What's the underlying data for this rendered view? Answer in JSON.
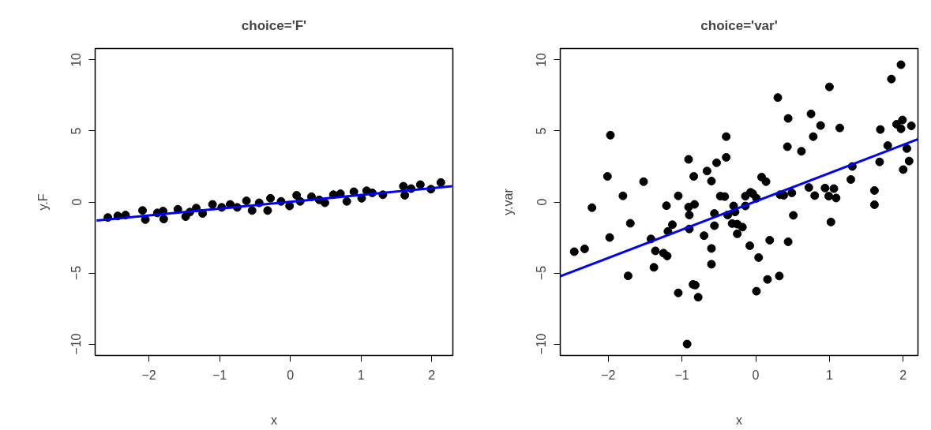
{
  "chart_data": [
    {
      "type": "scatter",
      "title": "choice='F'",
      "xlabel": "x",
      "ylabel": "y.F",
      "xlim": [
        -2.76,
        2.3
      ],
      "ylim": [
        -10.8,
        10.8
      ],
      "xticks": [
        -2,
        -1,
        0,
        1,
        2
      ],
      "yticks": [
        -10,
        -5,
        0,
        5,
        10
      ],
      "grid": false,
      "series": [
        {
          "marker": "circle",
          "color": "#000000",
          "x": [
            -2.58,
            -2.44,
            -2.33,
            -2.09,
            -2.05,
            -1.88,
            -1.8,
            -1.79,
            -1.59,
            -1.48,
            -1.42,
            -1.33,
            -1.24,
            -1.1,
            -0.97,
            -0.85,
            -0.75,
            -0.62,
            -0.54,
            -0.44,
            -0.28,
            -0.32,
            -0.13,
            -0.01,
            0.09,
            0.14,
            0.3,
            0.41,
            0.49,
            0.61,
            0.71,
            0.8,
            0.9,
            1.01,
            1.08,
            1.16,
            1.31,
            1.6,
            1.62,
            1.71,
            1.84,
            1.99,
            2.13
          ],
          "values": [
            -1.09,
            -0.98,
            -0.92,
            -0.6,
            -1.24,
            -0.77,
            -0.64,
            -1.2,
            -0.51,
            -1.03,
            -0.71,
            -0.43,
            -0.81,
            -0.17,
            -0.38,
            -0.17,
            -0.38,
            0.08,
            -0.6,
            -0.06,
            0.26,
            -0.6,
            0.04,
            -0.28,
            0.47,
            0.04,
            0.37,
            0.15,
            -0.06,
            0.51,
            0.58,
            0.04,
            0.72,
            0.26,
            0.79,
            0.64,
            0.51,
            1.11,
            0.47,
            0.94,
            1.22,
            0.9,
            1.37
          ]
        },
        {
          "type": "line",
          "color": "#0000ff",
          "x": [
            -2.74,
            2.29
          ],
          "values": [
            -1.3,
            1.11
          ]
        }
      ]
    },
    {
      "type": "scatter",
      "title": "choice='var'",
      "xlabel": "x",
      "ylabel": "y.var",
      "xlim": [
        -2.65,
        2.2
      ],
      "ylim": [
        -10.8,
        10.8
      ],
      "xticks": [
        -2,
        -1,
        0,
        1,
        2
      ],
      "yticks": [
        -10,
        -5,
        0,
        5,
        10
      ],
      "grid": false,
      "series": [
        {
          "marker": "circle",
          "color": "#000000",
          "x": [
            -2.46,
            -2.32,
            -2.22,
            -2.01,
            -1.97,
            -1.98,
            -1.8,
            -1.73,
            -1.7,
            -1.52,
            -1.42,
            -1.36,
            -1.38,
            -1.25,
            -1.2,
            -1.21,
            -1.19,
            -1.13,
            -1.05,
            -1.05,
            -0.93,
            -0.91,
            -0.91,
            -0.9,
            -0.9,
            -0.84,
            -0.83,
            -0.85,
            -0.82,
            -0.78,
            -0.7,
            -0.66,
            -0.6,
            -0.6,
            -0.6,
            -0.56,
            -0.56,
            -0.53,
            -0.48,
            -0.4,
            -0.4,
            -0.42,
            -0.38,
            -0.3,
            -0.28,
            -0.32,
            -0.25,
            -0.25,
            -0.18,
            -0.14,
            -0.14,
            -0.07,
            -0.04,
            0.01,
            -0.08,
            0.04,
            0.01,
            0.08,
            0.14,
            0.19,
            0.16,
            0.3,
            0.33,
            0.38,
            0.49,
            0.32,
            0.44,
            0.43,
            0.44,
            0.51,
            0.62,
            0.72,
            0.75,
            0.78,
            0.8,
            0.88,
            0.94,
            1.0,
            0.99,
            1.06,
            1.09,
            1.02,
            1.14,
            1.29,
            1.31,
            1.61,
            1.61,
            1.69,
            1.68,
            1.79,
            1.84,
            1.97,
            1.91,
            1.99,
            1.97,
            2.11,
            2.05,
            2.08,
            2.0
          ],
          "values": [
            -3.5,
            -3.3,
            -0.4,
            1.8,
            4.7,
            -2.5,
            0.43,
            -5.2,
            -1.5,
            1.43,
            -2.6,
            -3.44,
            -4.6,
            -3.6,
            -3.8,
            -0.26,
            -2.07,
            -1.6,
            0.43,
            -6.4,
            -10.0,
            3.0,
            -0.36,
            -0.92,
            -1.9,
            1.8,
            -0.17,
            -5.8,
            -5.85,
            -6.7,
            -2.37,
            2.18,
            1.47,
            -3.27,
            -4.38,
            -0.81,
            -1.67,
            2.76,
            0.41,
            4.6,
            3.14,
            0.38,
            -0.92,
            -0.28,
            -0.7,
            -1.52,
            -1.56,
            -2.24,
            -1.77,
            -0.28,
            0.41,
            0.68,
            0.58,
            0.26,
            -3.08,
            -3.91,
            -6.28,
            1.75,
            1.43,
            -2.69,
            -5.45,
            7.35,
            0.51,
            0.47,
            0.64,
            -5.21,
            5.88,
            3.89,
            -2.8,
            -0.94,
            3.57,
            1.02,
            6.2,
            4.6,
            0.45,
            5.38,
            0.98,
            8.1,
            0.41,
            0.94,
            0.28,
            -1.41,
            5.21,
            1.58,
            2.5,
            0.81,
            -0.19,
            5.1,
            2.82,
            3.97,
            8.65,
            9.66,
            5.47,
            5.77,
            5.15,
            5.36,
            3.76,
            2.88,
            2.28
          ]
        },
        {
          "type": "line",
          "color": "#0000ff",
          "x": [
            -2.65,
            2.2
          ],
          "values": [
            -5.23,
            4.42
          ]
        }
      ]
    }
  ]
}
